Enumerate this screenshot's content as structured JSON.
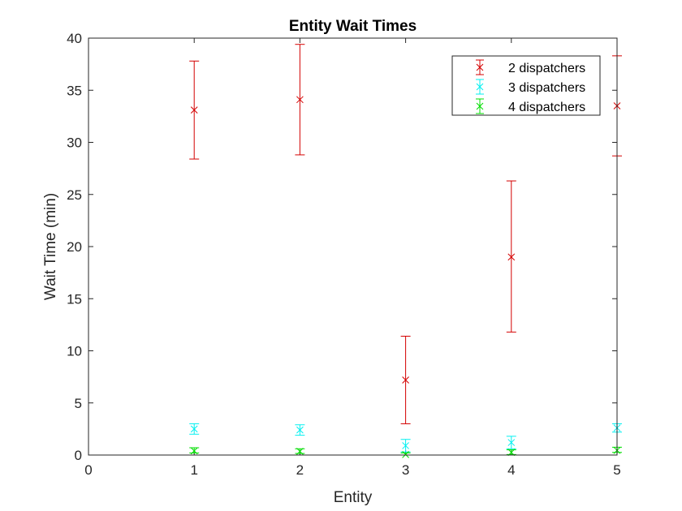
{
  "chart_data": {
    "type": "scatter",
    "title": "Entity Wait Times",
    "xlabel": "Entity",
    "ylabel": "Wait Time (min)",
    "xlim": [
      0,
      5
    ],
    "ylim": [
      0,
      40
    ],
    "xticks": [
      "0",
      "1",
      "2",
      "3",
      "4",
      "5"
    ],
    "yticks": [
      "0",
      "5",
      "10",
      "15",
      "20",
      "25",
      "30",
      "35",
      "40"
    ],
    "grid": false,
    "legend_position": "top-right",
    "marker": "x",
    "error_bars": true,
    "series": [
      {
        "name": "2 dispatchers",
        "color": "#d40000",
        "x": [
          1,
          2,
          3,
          4,
          5
        ],
        "y": [
          33.1,
          34.1,
          7.2,
          19.0,
          33.5
        ],
        "lower": [
          28.4,
          28.8,
          3.0,
          11.8,
          28.7
        ],
        "upper": [
          37.8,
          39.4,
          11.4,
          26.3,
          38.3
        ]
      },
      {
        "name": "3 dispatchers",
        "color": "#00f0f0",
        "x": [
          1,
          2,
          3,
          4,
          5
        ],
        "y": [
          2.5,
          2.4,
          0.9,
          1.2,
          2.6
        ],
        "lower": [
          2.0,
          1.9,
          0.3,
          0.6,
          2.2
        ],
        "upper": [
          3.0,
          2.9,
          1.5,
          1.8,
          3.0
        ]
      },
      {
        "name": "4 dispatchers",
        "color": "#00dd00",
        "x": [
          1,
          2,
          3,
          4,
          5
        ],
        "y": [
          0.4,
          0.35,
          0.05,
          0.25,
          0.45
        ],
        "lower": [
          0.2,
          0.15,
          0.0,
          0.05,
          0.25
        ],
        "upper": [
          0.7,
          0.6,
          0.2,
          0.5,
          0.75
        ]
      }
    ]
  }
}
